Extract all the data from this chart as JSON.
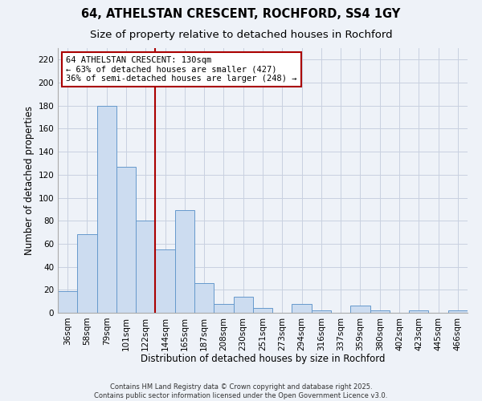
{
  "title": "64, ATHELSTAN CRESCENT, ROCHFORD, SS4 1GY",
  "subtitle": "Size of property relative to detached houses in Rochford",
  "xlabel": "Distribution of detached houses by size in Rochford",
  "ylabel": "Number of detached properties",
  "bar_labels": [
    "36sqm",
    "58sqm",
    "79sqm",
    "101sqm",
    "122sqm",
    "144sqm",
    "165sqm",
    "187sqm",
    "208sqm",
    "230sqm",
    "251sqm",
    "273sqm",
    "294sqm",
    "316sqm",
    "337sqm",
    "359sqm",
    "380sqm",
    "402sqm",
    "423sqm",
    "445sqm",
    "466sqm"
  ],
  "bar_values": [
    19,
    68,
    180,
    127,
    80,
    55,
    89,
    26,
    8,
    14,
    4,
    0,
    8,
    2,
    0,
    6,
    2,
    0,
    2,
    0,
    2
  ],
  "bar_color": "#ccdcf0",
  "bar_edge_color": "#6699cc",
  "ylim": [
    0,
    230
  ],
  "yticks": [
    0,
    20,
    40,
    60,
    80,
    100,
    120,
    140,
    160,
    180,
    200,
    220
  ],
  "vline_color": "#aa0000",
  "annotation_text": "64 ATHELSTAN CRESCENT: 130sqm\n← 63% of detached houses are smaller (427)\n36% of semi-detached houses are larger (248) →",
  "grid_color": "#c8d0e0",
  "bg_color": "#eef2f8",
  "footer_line1": "Contains HM Land Registry data © Crown copyright and database right 2025.",
  "footer_line2": "Contains public sector information licensed under the Open Government Licence v3.0.",
  "title_fontsize": 10.5,
  "subtitle_fontsize": 9.5,
  "axis_label_fontsize": 8.5,
  "tick_fontsize": 7.5,
  "annotation_fontsize": 7.5,
  "footer_fontsize": 6.0
}
